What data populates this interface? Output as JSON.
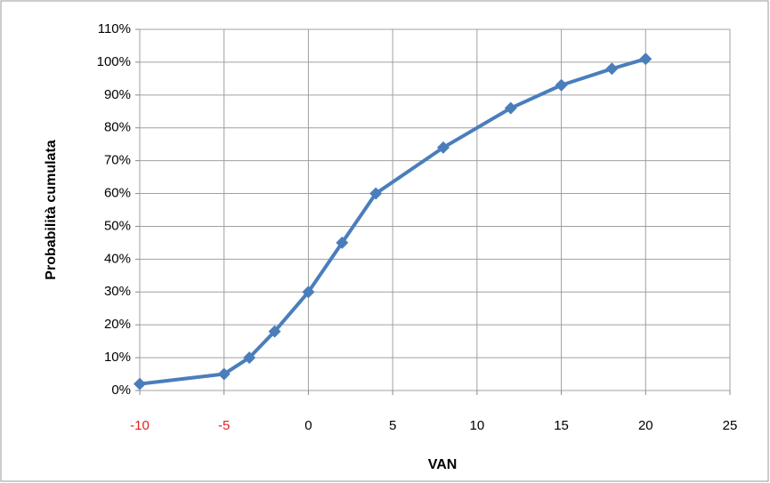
{
  "chart_data": {
    "type": "line",
    "x_label": "VAN",
    "y_label": "Probabilità cumulata",
    "x": [
      -10,
      -5,
      -3.5,
      -2,
      0,
      2,
      4,
      8,
      12,
      15,
      18,
      20
    ],
    "series": [
      {
        "name": "Probabilità cumulata",
        "color": "#4a7ebb",
        "values": [
          2,
          5,
          10,
          18,
          30,
          45,
          60,
          74,
          86,
          93,
          98,
          101
        ]
      }
    ],
    "xlim": [
      -10,
      25
    ],
    "xticks": [
      -10,
      -5,
      0,
      5,
      10,
      15,
      20,
      25
    ],
    "ylim": [
      0,
      110
    ],
    "yticks": [
      {
        "value": 0,
        "label": "0%"
      },
      {
        "value": 10,
        "label": "10%"
      },
      {
        "value": 20,
        "label": "20%"
      },
      {
        "value": 30,
        "label": "30%"
      },
      {
        "value": 40,
        "label": "40%"
      },
      {
        "value": 50,
        "label": "50%"
      },
      {
        "value": 60,
        "label": "60%"
      },
      {
        "value": 70,
        "label": "70%"
      },
      {
        "value": 80,
        "label": "80%"
      },
      {
        "value": 90,
        "label": "90%"
      },
      {
        "value": 100,
        "label": "100%"
      },
      {
        "value": 110,
        "label": "110%"
      }
    ],
    "grid": true,
    "negative_tick_color": "#e02020"
  }
}
